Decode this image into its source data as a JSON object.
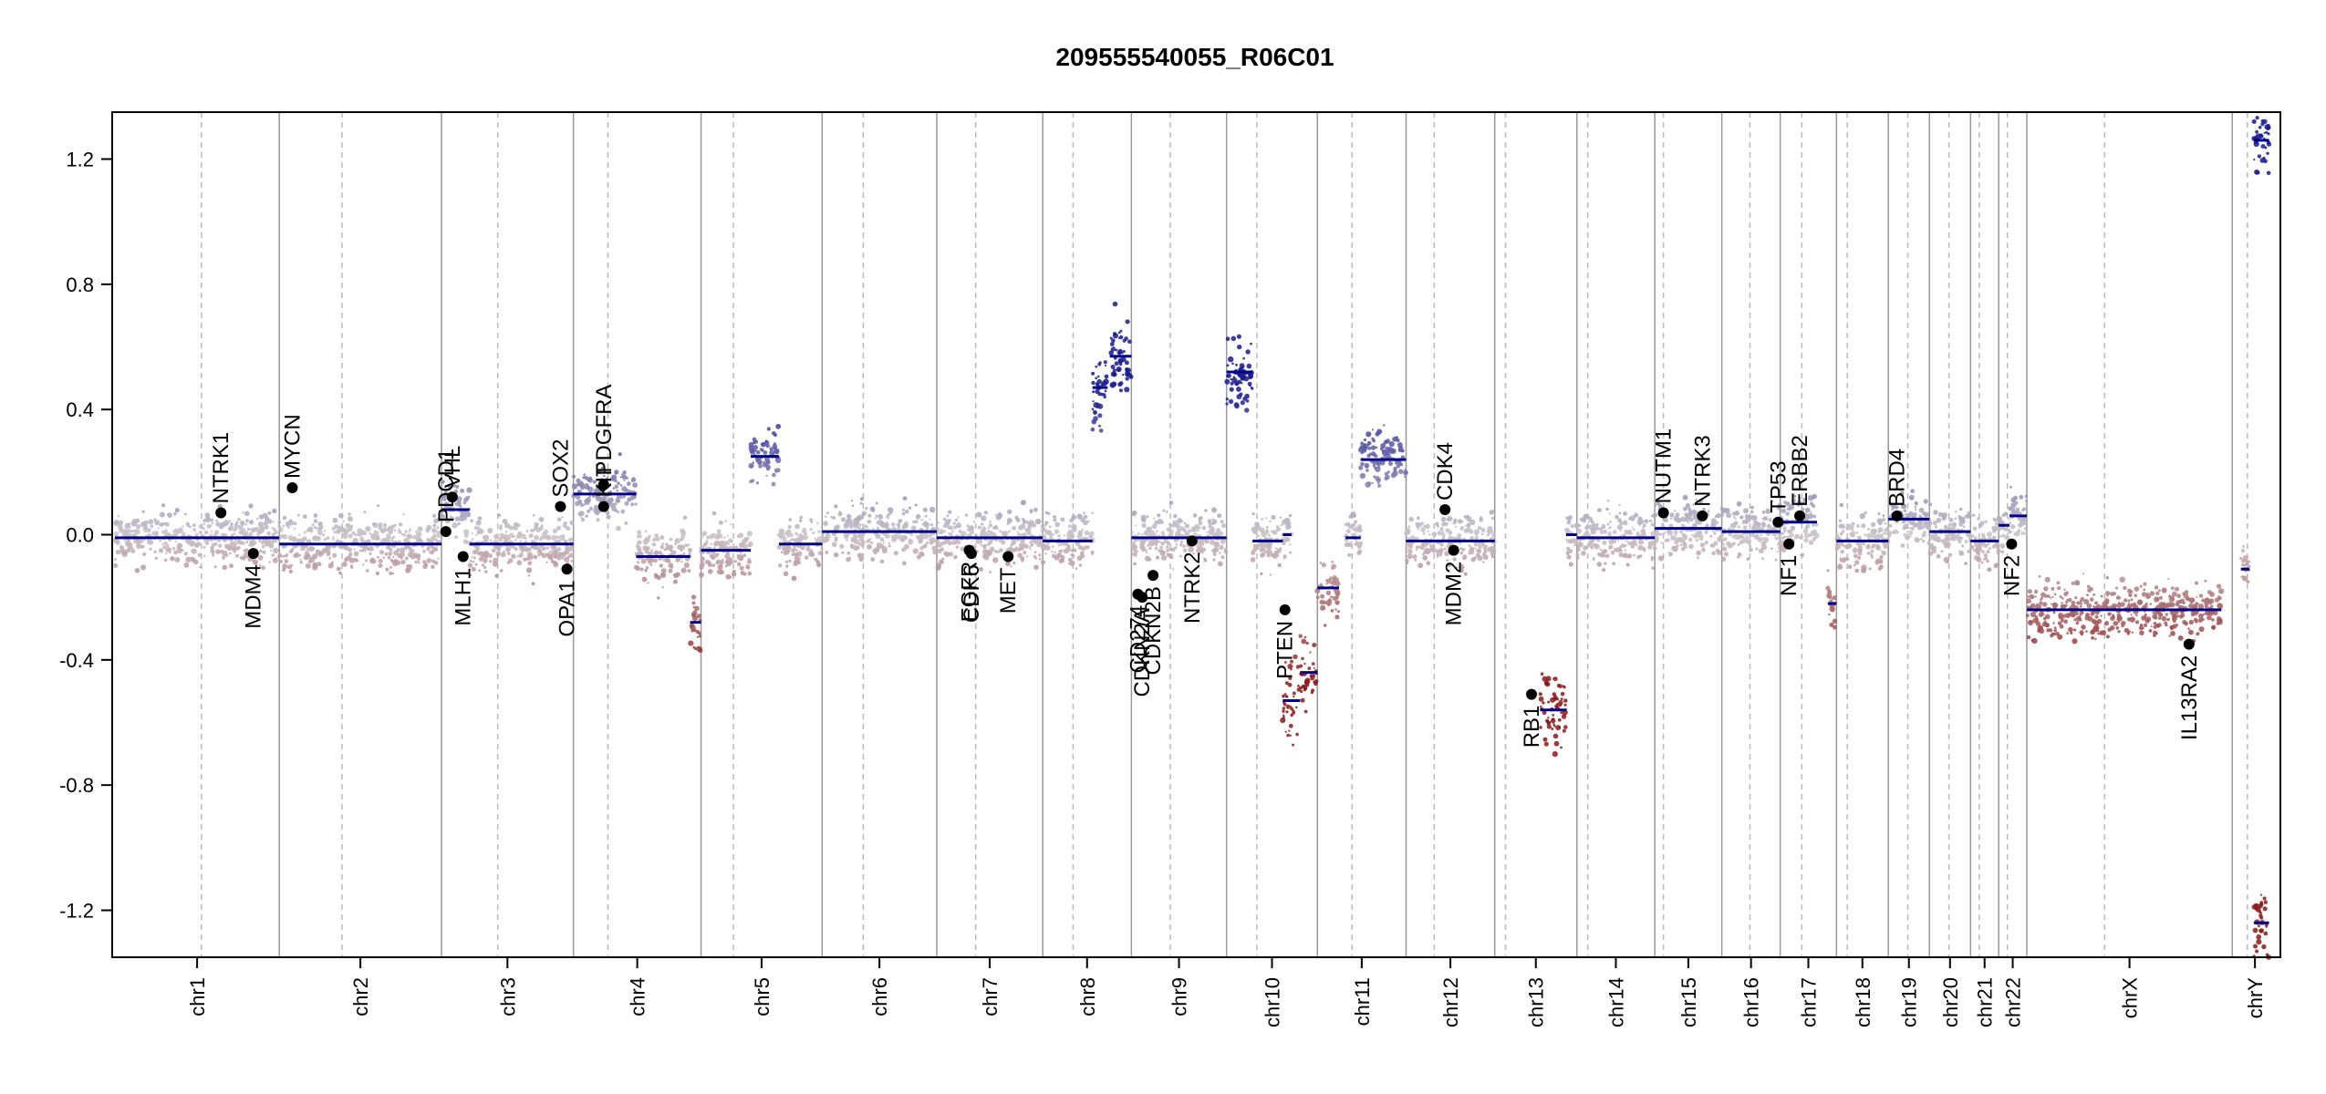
{
  "chart_data": {
    "type": "scatter",
    "title": "209555540055_R06C01",
    "xlabel": "",
    "ylabel": "",
    "ylim": [
      -1.35,
      1.35
    ],
    "yticks": [
      -1.2,
      -0.8,
      -0.4,
      0.0,
      0.4,
      0.8,
      1.2
    ],
    "ytick_labels": [
      "-1.2",
      "-0.8",
      "-0.4",
      "0.0",
      "0.4",
      "0.8",
      "1.2"
    ],
    "xlim": [
      0,
      100
    ],
    "grid": false,
    "colors": {
      "gain": "#1a1a8c",
      "neutral": "#c9c2c8",
      "loss": "#8b1a1a",
      "segment": "#00008b",
      "border": "#999999",
      "centromere": "#bbbbbb"
    },
    "chromosomes": [
      {
        "name": "chr1",
        "start": 0.0,
        "end": 7.6,
        "centromere": 4.0
      },
      {
        "name": "chr2",
        "start": 7.6,
        "end": 15.1,
        "centromere": 10.5
      },
      {
        "name": "chr3",
        "start": 15.1,
        "end": 21.2,
        "centromere": 17.7
      },
      {
        "name": "chr4",
        "start": 21.2,
        "end": 27.1,
        "centromere": 22.8
      },
      {
        "name": "chr5",
        "start": 27.1,
        "end": 32.7,
        "centromere": 28.6
      },
      {
        "name": "chr6",
        "start": 32.7,
        "end": 38.0,
        "centromere": 34.6
      },
      {
        "name": "chr7",
        "start": 38.0,
        "end": 42.9,
        "centromere": 39.8
      },
      {
        "name": "chr8",
        "start": 42.9,
        "end": 47.0,
        "centromere": 44.3
      },
      {
        "name": "chr9",
        "start": 47.0,
        "end": 51.4,
        "centromere": 48.8
      },
      {
        "name": "chr10",
        "start": 51.4,
        "end": 55.6,
        "centromere": 52.8
      },
      {
        "name": "chr11",
        "start": 55.6,
        "end": 59.7,
        "centromere": 57.2
      },
      {
        "name": "chr12",
        "start": 59.7,
        "end": 63.8,
        "centromere": 61.0
      },
      {
        "name": "chr13",
        "start": 63.8,
        "end": 67.6,
        "centromere": 64.3
      },
      {
        "name": "chr14",
        "start": 67.6,
        "end": 71.2,
        "centromere": 68.1
      },
      {
        "name": "chr15",
        "start": 71.2,
        "end": 74.3,
        "centromere": 71.6
      },
      {
        "name": "chr16",
        "start": 74.3,
        "end": 77.0,
        "centromere": 75.6
      },
      {
        "name": "chr17",
        "start": 77.0,
        "end": 79.6,
        "centromere": 78.0
      },
      {
        "name": "chr18",
        "start": 79.6,
        "end": 82.0,
        "centromere": 80.1
      },
      {
        "name": "chr19",
        "start": 82.0,
        "end": 83.9,
        "centromere": 82.9
      },
      {
        "name": "chr20",
        "start": 83.9,
        "end": 85.8,
        "centromere": 84.8
      },
      {
        "name": "chr21",
        "start": 85.8,
        "end": 87.1,
        "centromere": 86.2
      },
      {
        "name": "chr22",
        "start": 87.1,
        "end": 88.4,
        "centromere": 87.5
      },
      {
        "name": "chrX",
        "start": 88.4,
        "end": 97.9,
        "centromere": 92.0
      },
      {
        "name": "chrY",
        "start": 97.9,
        "end": 100.0,
        "centromere": 98.6
      }
    ],
    "segments": [
      {
        "chr": "chr1",
        "x0": 0.0,
        "x1": 7.6,
        "y": -0.01
      },
      {
        "chr": "chr2",
        "x0": 7.6,
        "x1": 15.1,
        "y": -0.03
      },
      {
        "chr": "chr3",
        "x0": 15.1,
        "x1": 16.4,
        "y": 0.08
      },
      {
        "chr": "chr3",
        "x0": 16.4,
        "x1": 21.2,
        "y": -0.03
      },
      {
        "chr": "chr4",
        "x0": 21.2,
        "x1": 24.1,
        "y": 0.13
      },
      {
        "chr": "chr4",
        "x0": 24.1,
        "x1": 26.6,
        "y": -0.07
      },
      {
        "chr": "chr4",
        "x0": 26.6,
        "x1": 27.1,
        "y": -0.28
      },
      {
        "chr": "chr5",
        "x0": 27.1,
        "x1": 29.4,
        "y": -0.05
      },
      {
        "chr": "chr5",
        "x0": 29.4,
        "x1": 30.7,
        "y": 0.25
      },
      {
        "chr": "chr5",
        "x0": 30.7,
        "x1": 32.7,
        "y": -0.03
      },
      {
        "chr": "chr6",
        "x0": 32.7,
        "x1": 38.0,
        "y": 0.01
      },
      {
        "chr": "chr7",
        "x0": 38.0,
        "x1": 42.9,
        "y": -0.01
      },
      {
        "chr": "chr8",
        "x0": 42.9,
        "x1": 45.2,
        "y": -0.02
      },
      {
        "chr": "chr8",
        "x0": 45.2,
        "x1": 45.9,
        "y": 0.47
      },
      {
        "chr": "chr8",
        "x0": 46.0,
        "x1": 47.0,
        "y": 0.57
      },
      {
        "chr": "chr9",
        "x0": 47.0,
        "x1": 51.4,
        "y": -0.01
      },
      {
        "chr": "chr10",
        "x0": 51.4,
        "x1": 52.6,
        "y": 0.52
      },
      {
        "chr": "chr10",
        "x0": 52.6,
        "x1": 54.0,
        "y": -0.02
      },
      {
        "chr": "chr10",
        "x0": 54.0,
        "x1": 54.4,
        "y": 0.0
      },
      {
        "chr": "chr10",
        "x0": 54.0,
        "x1": 54.8,
        "y": -0.53
      },
      {
        "chr": "chr10",
        "x0": 54.8,
        "x1": 55.6,
        "y": -0.44
      },
      {
        "chr": "chr11",
        "x0": 55.6,
        "x1": 56.6,
        "y": -0.17
      },
      {
        "chr": "chr11",
        "x0": 56.9,
        "x1": 57.6,
        "y": -0.01
      },
      {
        "chr": "chr11",
        "x0": 57.6,
        "x1": 59.7,
        "y": 0.24
      },
      {
        "chr": "chr12",
        "x0": 59.7,
        "x1": 63.8,
        "y": -0.02
      },
      {
        "chr": "chr13",
        "x0": 65.9,
        "x1": 67.1,
        "y": -0.56
      },
      {
        "chr": "chr13",
        "x0": 67.1,
        "x1": 67.6,
        "y": 0.0
      },
      {
        "chr": "chr14",
        "x0": 67.6,
        "x1": 71.2,
        "y": -0.01
      },
      {
        "chr": "chr15",
        "x0": 71.2,
        "x1": 74.3,
        "y": 0.02
      },
      {
        "chr": "chr16",
        "x0": 74.3,
        "x1": 77.0,
        "y": 0.01
      },
      {
        "chr": "chr17",
        "x0": 77.0,
        "x1": 78.7,
        "y": 0.04
      },
      {
        "chr": "chr17",
        "x0": 79.2,
        "x1": 79.6,
        "y": -0.22
      },
      {
        "chr": "chr18",
        "x0": 79.6,
        "x1": 82.0,
        "y": -0.02
      },
      {
        "chr": "chr19",
        "x0": 82.0,
        "x1": 83.9,
        "y": 0.05
      },
      {
        "chr": "chr20",
        "x0": 83.9,
        "x1": 85.8,
        "y": 0.01
      },
      {
        "chr": "chr21",
        "x0": 85.8,
        "x1": 87.1,
        "y": -0.02
      },
      {
        "chr": "chr22",
        "x0": 87.1,
        "x1": 87.6,
        "y": 0.03
      },
      {
        "chr": "chr22",
        "x0": 87.6,
        "x1": 88.4,
        "y": 0.06
      },
      {
        "chr": "chrX",
        "x0": 88.4,
        "x1": 92.0,
        "y": -0.24
      },
      {
        "chr": "chrX",
        "x0": 92.0,
        "x1": 97.4,
        "y": -0.24
      },
      {
        "chr": "chrY",
        "x0": 98.3,
        "x1": 98.7,
        "y": -0.11
      },
      {
        "chr": "chrY",
        "x0": 98.9,
        "x1": 99.6,
        "y": 1.26
      },
      {
        "chr": "chrY",
        "x0": 98.9,
        "x1": 99.6,
        "y": -1.24
      }
    ],
    "genes": [
      {
        "name": "NTRK1",
        "x": 4.9,
        "y": 0.07,
        "label_pos": "above"
      },
      {
        "name": "MDM4",
        "x": 6.4,
        "y": -0.06,
        "label_pos": "below"
      },
      {
        "name": "MYCN",
        "x": 8.2,
        "y": 0.15,
        "label_pos": "above"
      },
      {
        "name": "PDCD1",
        "x": 15.3,
        "y": 0.01,
        "label_pos": "above"
      },
      {
        "name": "VHL",
        "x": 15.6,
        "y": 0.12,
        "label_pos": "above"
      },
      {
        "name": "MLH1",
        "x": 16.1,
        "y": -0.07,
        "label_pos": "below"
      },
      {
        "name": "SOX2",
        "x": 20.6,
        "y": 0.09,
        "label_pos": "above"
      },
      {
        "name": "OPA1",
        "x": 20.9,
        "y": -0.11,
        "label_pos": "below"
      },
      {
        "name": "KIT",
        "x": 22.6,
        "y": 0.09,
        "label_pos": "above"
      },
      {
        "name": "PDGFRA",
        "x": 22.6,
        "y": 0.16,
        "label_pos": "above"
      },
      {
        "name": "EGFR",
        "x": 39.5,
        "y": -0.05,
        "label_pos": "below"
      },
      {
        "name": "CDK6",
        "x": 39.6,
        "y": -0.06,
        "label_pos": "below"
      },
      {
        "name": "MET",
        "x": 41.3,
        "y": -0.07,
        "label_pos": "below"
      },
      {
        "name": "CD274",
        "x": 47.3,
        "y": -0.19,
        "label_pos": "below"
      },
      {
        "name": "CDKN2A",
        "x": 47.5,
        "y": -0.2,
        "label_pos": "below"
      },
      {
        "name": "CDKN2B",
        "x": 48.0,
        "y": -0.13,
        "label_pos": "below"
      },
      {
        "name": "NTRK2",
        "x": 49.8,
        "y": -0.02,
        "label_pos": "below"
      },
      {
        "name": "PTEN",
        "x": 54.1,
        "y": -0.24,
        "label_pos": "below"
      },
      {
        "name": "CDK4",
        "x": 61.5,
        "y": 0.08,
        "label_pos": "above"
      },
      {
        "name": "MDM2",
        "x": 61.9,
        "y": -0.05,
        "label_pos": "below"
      },
      {
        "name": "RB1",
        "x": 65.5,
        "y": -0.51,
        "label_pos": "below"
      },
      {
        "name": "NUTM1",
        "x": 71.6,
        "y": 0.07,
        "label_pos": "above"
      },
      {
        "name": "NTRK3",
        "x": 73.4,
        "y": 0.06,
        "label_pos": "above"
      },
      {
        "name": "TP53",
        "x": 76.9,
        "y": 0.04,
        "label_pos": "above"
      },
      {
        "name": "NF1",
        "x": 77.4,
        "y": -0.03,
        "label_pos": "below"
      },
      {
        "name": "ERBB2",
        "x": 77.9,
        "y": 0.06,
        "label_pos": "above"
      },
      {
        "name": "BRD4",
        "x": 82.4,
        "y": 0.06,
        "label_pos": "above"
      },
      {
        "name": "NF2",
        "x": 87.7,
        "y": -0.03,
        "label_pos": "below"
      },
      {
        "name": "IL13RA2",
        "x": 95.9,
        "y": -0.35,
        "label_pos": "below"
      }
    ]
  }
}
